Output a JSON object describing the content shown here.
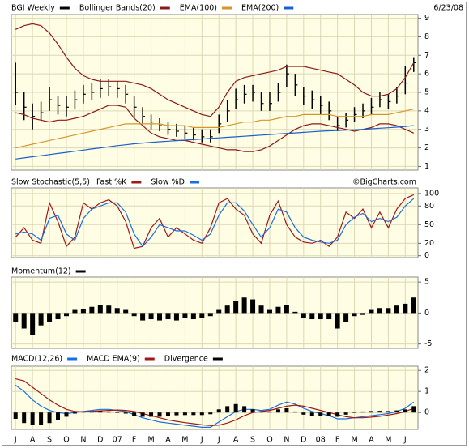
{
  "chart_data": [
    {
      "type": "ohlc",
      "date": "6/23/08",
      "ylim": [
        0.8,
        9.2
      ],
      "yticks": [
        1,
        2,
        3,
        4,
        5,
        6,
        7,
        8,
        9
      ],
      "grid": true,
      "series": [
        {
          "name": "BGI Weekly",
          "color": "#000000",
          "high": [
            6.6,
            5.0,
            4.4,
            4.5,
            5.3,
            4.8,
            4.8,
            5.1,
            5.4,
            5.5,
            5.7,
            5.7,
            5.6,
            5.4,
            4.8,
            4.2,
            3.8,
            3.6,
            3.4,
            3.3,
            3.2,
            3.1,
            3.0,
            3.0,
            3.8,
            4.6,
            5.2,
            5.4,
            5.4,
            5.0,
            5.0,
            5.5,
            6.5,
            6.0,
            5.3,
            5.1,
            4.8,
            4.5,
            3.7,
            3.9,
            4.2,
            4.4,
            4.7,
            5.0,
            4.9,
            5.3,
            6.4,
            6.9
          ],
          "low": [
            4.3,
            3.5,
            3.0,
            3.5,
            4.0,
            3.8,
            3.7,
            4.1,
            4.4,
            4.6,
            4.7,
            4.8,
            4.7,
            4.4,
            3.6,
            3.3,
            3.0,
            2.9,
            2.7,
            2.6,
            2.5,
            2.4,
            2.3,
            2.3,
            2.8,
            3.4,
            4.1,
            4.4,
            4.5,
            4.0,
            4.0,
            4.5,
            5.3,
            4.8,
            4.3,
            4.1,
            3.8,
            3.5,
            2.9,
            3.1,
            3.4,
            3.6,
            3.8,
            4.2,
            4.1,
            4.4,
            4.9,
            6.1
          ],
          "close": [
            5.0,
            4.2,
            3.7,
            3.9,
            4.6,
            4.3,
            4.2,
            4.6,
            4.9,
            5.0,
            5.2,
            5.3,
            5.2,
            4.9,
            4.2,
            3.7,
            3.4,
            3.2,
            3.0,
            2.9,
            2.8,
            2.7,
            2.6,
            2.6,
            3.3,
            4.0,
            4.6,
            4.9,
            5.0,
            4.4,
            4.4,
            5.0,
            6.0,
            5.4,
            4.8,
            4.6,
            4.3,
            4.0,
            3.2,
            3.5,
            3.8,
            4.0,
            4.2,
            4.6,
            4.5,
            4.8,
            5.5,
            6.6
          ]
        },
        {
          "name": "Bollinger Bands(20)",
          "color": "#8b1a1a",
          "upper": [
            8.4,
            8.6,
            8.7,
            8.6,
            8.2,
            7.6,
            6.9,
            6.3,
            5.9,
            5.7,
            5.6,
            5.6,
            5.6,
            5.6,
            5.5,
            5.4,
            5.2,
            4.9,
            4.6,
            4.4,
            4.2,
            4.0,
            3.8,
            3.7,
            4.2,
            5.0,
            5.6,
            5.8,
            5.9,
            6.0,
            6.1,
            6.2,
            6.4,
            6.4,
            6.4,
            6.3,
            6.2,
            6.1,
            6.0,
            5.7,
            5.4,
            5.0,
            4.8,
            4.8,
            4.9,
            5.2,
            5.8,
            6.6
          ],
          "lower": [
            3.9,
            3.8,
            3.6,
            3.5,
            3.4,
            3.5,
            3.5,
            3.6,
            3.7,
            3.9,
            4.1,
            4.3,
            4.3,
            4.2,
            3.6,
            3.2,
            2.8,
            2.6,
            2.5,
            2.4,
            2.4,
            2.3,
            2.2,
            2.1,
            2.0,
            1.9,
            1.9,
            1.8,
            1.8,
            1.9,
            2.1,
            2.4,
            2.7,
            3.0,
            3.2,
            3.3,
            3.3,
            3.2,
            3.1,
            3.0,
            2.9,
            3.0,
            3.1,
            3.3,
            3.3,
            3.2,
            3.0,
            2.8
          ]
        },
        {
          "name": "EMA(100)",
          "color": "#d4962a",
          "values": [
            2.0,
            2.1,
            2.2,
            2.3,
            2.4,
            2.5,
            2.6,
            2.7,
            2.8,
            2.9,
            3.0,
            3.1,
            3.2,
            3.3,
            3.3,
            3.3,
            3.3,
            3.3,
            3.2,
            3.2,
            3.2,
            3.1,
            3.1,
            3.1,
            3.1,
            3.2,
            3.3,
            3.4,
            3.4,
            3.5,
            3.5,
            3.6,
            3.7,
            3.7,
            3.8,
            3.8,
            3.8,
            3.8,
            3.7,
            3.7,
            3.7,
            3.7,
            3.8,
            3.8,
            3.8,
            3.9,
            4.0,
            4.1
          ]
        },
        {
          "name": "EMA(200)",
          "color": "#1a5fd0",
          "values": [
            1.4,
            1.46,
            1.52,
            1.58,
            1.64,
            1.7,
            1.76,
            1.82,
            1.88,
            1.94,
            2.0,
            2.06,
            2.12,
            2.17,
            2.22,
            2.26,
            2.3,
            2.33,
            2.36,
            2.39,
            2.42,
            2.45,
            2.48,
            2.51,
            2.54,
            2.57,
            2.6,
            2.63,
            2.66,
            2.69,
            2.72,
            2.75,
            2.78,
            2.81,
            2.84,
            2.87,
            2.9,
            2.92,
            2.94,
            2.96,
            2.98,
            3.0,
            3.03,
            3.06,
            3.09,
            3.12,
            3.16,
            3.2
          ]
        }
      ]
    },
    {
      "type": "line",
      "title": "Slow Stochastic(5,5)",
      "credit": "©BigCharts.com",
      "ylim": [
        -3,
        109
      ],
      "yticks": [
        0,
        20,
        50,
        80,
        100
      ],
      "grid": true,
      "series": [
        {
          "name": "Fast %K",
          "color": "#a01818",
          "values": [
            30,
            45,
            25,
            20,
            85,
            55,
            15,
            30,
            85,
            75,
            85,
            90,
            80,
            55,
            12,
            15,
            45,
            60,
            30,
            45,
            35,
            25,
            20,
            45,
            85,
            92,
            75,
            65,
            35,
            20,
            65,
            88,
            50,
            30,
            22,
            20,
            25,
            15,
            30,
            70,
            60,
            75,
            45,
            70,
            45,
            75,
            92,
            98
          ]
        },
        {
          "name": "Slow %D",
          "color": "#1a6fe0",
          "values": [
            35,
            38,
            35,
            25,
            60,
            65,
            35,
            25,
            60,
            75,
            80,
            85,
            85,
            70,
            35,
            15,
            30,
            50,
            45,
            40,
            40,
            33,
            25,
            35,
            65,
            85,
            85,
            72,
            50,
            30,
            45,
            75,
            70,
            45,
            30,
            25,
            22,
            20,
            25,
            50,
            62,
            68,
            55,
            60,
            55,
            62,
            80,
            92
          ]
        }
      ]
    },
    {
      "type": "bar",
      "ylim": [
        -5.7,
        5.8
      ],
      "yticks": [
        -5,
        0,
        5
      ],
      "grid": true,
      "series": [
        {
          "name": "Momentum(12)",
          "color": "#000000",
          "values": [
            -1.5,
            -2.5,
            -3.5,
            -2,
            -1.5,
            -1,
            -0.5,
            0.5,
            0.7,
            1.0,
            1.3,
            1.2,
            0.8,
            0.5,
            -0.5,
            -1.2,
            -1,
            -1.2,
            -1,
            -1.2,
            -0.8,
            -1.0,
            -0.8,
            -0.5,
            0.5,
            1.2,
            2.0,
            2.5,
            2.2,
            1.2,
            0.5,
            1.0,
            1.3,
            0.2,
            -0.8,
            -1.0,
            -1.0,
            -1.0,
            -2.5,
            -1.5,
            -0.5,
            -0.3,
            0.5,
            0.8,
            0.8,
            1.2,
            1.5,
            2.5
          ]
        }
      ]
    },
    {
      "type": "line",
      "categories": [
        "J",
        null,
        "A",
        null,
        "S",
        null,
        "O",
        null,
        "N",
        null,
        "D",
        null,
        "07",
        null,
        "F",
        null,
        "M",
        null,
        "A",
        null,
        "M",
        null,
        "J",
        null,
        "J",
        null,
        "A",
        null,
        "S",
        null,
        "O",
        null,
        "N",
        null,
        "D",
        null,
        "08",
        null,
        "F",
        null,
        "M",
        null,
        "A",
        null,
        "M",
        null,
        "J",
        null
      ],
      "ylim": [
        -0.8,
        2.2
      ],
      "yticks": [
        0,
        1,
        2
      ],
      "grid": true,
      "series": [
        {
          "name": "MACD(12,26)",
          "color": "#1a6fe0",
          "values": [
            1.3,
            1.0,
            0.6,
            0.3,
            0.1,
            0.0,
            -0.05,
            0.0,
            0.05,
            0.1,
            0.15,
            0.15,
            0.1,
            0.05,
            -0.1,
            -0.25,
            -0.35,
            -0.45,
            -0.5,
            -0.55,
            -0.6,
            -0.65,
            -0.7,
            -0.7,
            -0.45,
            -0.2,
            0.05,
            0.15,
            0.15,
            0.1,
            0.15,
            0.35,
            0.5,
            0.4,
            0.2,
            0.05,
            -0.05,
            -0.15,
            -0.3,
            -0.3,
            -0.25,
            -0.2,
            -0.15,
            -0.1,
            -0.05,
            0.05,
            0.2,
            0.5
          ]
        },
        {
          "name": "MACD EMA(9)",
          "color": "#a01818",
          "values": [
            1.6,
            1.5,
            1.2,
            0.9,
            0.6,
            0.35,
            0.15,
            0.05,
            0.03,
            0.05,
            0.08,
            0.1,
            0.12,
            0.1,
            0.05,
            -0.05,
            -0.15,
            -0.25,
            -0.35,
            -0.42,
            -0.48,
            -0.53,
            -0.58,
            -0.62,
            -0.6,
            -0.5,
            -0.35,
            -0.15,
            0.0,
            0.05,
            0.1,
            0.2,
            0.3,
            0.35,
            0.3,
            0.2,
            0.1,
            0.0,
            -0.1,
            -0.2,
            -0.25,
            -0.25,
            -0.22,
            -0.18,
            -0.12,
            -0.05,
            0.05,
            0.2
          ]
        },
        {
          "name": "Divergence",
          "color": "#000000",
          "type": "bar",
          "values": [
            -0.3,
            -0.5,
            -0.6,
            -0.6,
            -0.5,
            -0.35,
            -0.2,
            -0.05,
            0.02,
            0.05,
            0.07,
            0.05,
            -0.02,
            -0.05,
            -0.15,
            -0.2,
            -0.2,
            -0.2,
            -0.15,
            -0.13,
            -0.12,
            -0.12,
            -0.12,
            -0.08,
            0.15,
            0.3,
            0.4,
            0.3,
            0.15,
            0.05,
            0.05,
            0.15,
            0.2,
            0.05,
            -0.1,
            -0.15,
            -0.15,
            -0.15,
            -0.2,
            -0.1,
            0,
            0.05,
            0.07,
            0.08,
            0.07,
            0.1,
            0.15,
            0.3
          ]
        }
      ]
    }
  ]
}
